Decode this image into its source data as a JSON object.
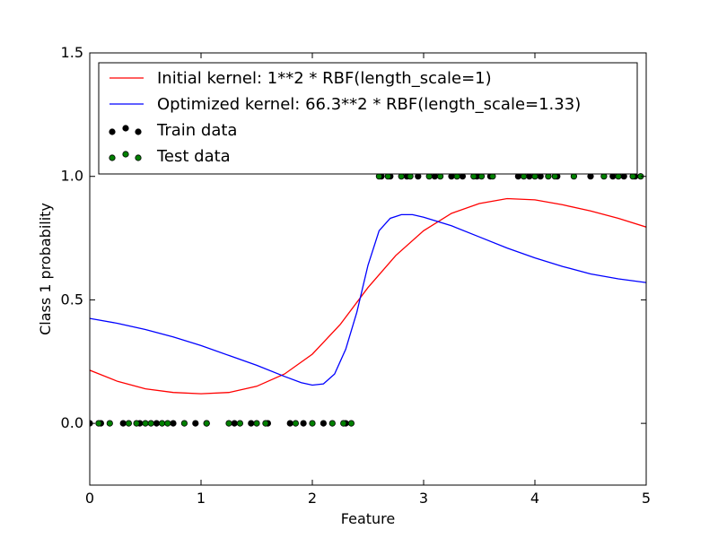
{
  "chart_data": {
    "type": "line",
    "title": "",
    "xlabel": "Feature",
    "ylabel": "Class 1 probability",
    "xlim": [
      0,
      5
    ],
    "ylim": [
      -0.25,
      1.5
    ],
    "xticks": [
      0,
      1,
      2,
      3,
      4,
      5
    ],
    "yticks": [
      0.0,
      0.5,
      1.0,
      1.5
    ],
    "xtick_labels": [
      "0",
      "1",
      "2",
      "3",
      "4",
      "5"
    ],
    "ytick_labels": [
      "0.0",
      "0.5",
      "1.0",
      "1.5"
    ],
    "grid": false,
    "legend_position": "top",
    "series": [
      {
        "name": "Initial kernel: 1**2 * RBF(length_scale=1)",
        "kind": "line",
        "color": "#ff0000",
        "x": [
          0,
          0.25,
          0.5,
          0.75,
          1.0,
          1.25,
          1.5,
          1.75,
          2.0,
          2.25,
          2.5,
          2.75,
          3.0,
          3.25,
          3.5,
          3.75,
          4.0,
          4.25,
          4.5,
          4.75,
          5.0
        ],
        "y": [
          0.215,
          0.17,
          0.14,
          0.125,
          0.12,
          0.125,
          0.15,
          0.2,
          0.28,
          0.4,
          0.55,
          0.68,
          0.78,
          0.85,
          0.89,
          0.91,
          0.905,
          0.885,
          0.86,
          0.83,
          0.795
        ]
      },
      {
        "name": "Optimized kernel: 66.3**2 * RBF(length_scale=1.33)",
        "kind": "line",
        "color": "#0000ff",
        "x": [
          0,
          0.25,
          0.5,
          0.75,
          1.0,
          1.25,
          1.5,
          1.75,
          1.9,
          2.0,
          2.1,
          2.2,
          2.3,
          2.4,
          2.5,
          2.6,
          2.7,
          2.8,
          2.9,
          3.0,
          3.25,
          3.5,
          3.75,
          4.0,
          4.25,
          4.5,
          4.75,
          5.0
        ],
        "y": [
          0.425,
          0.405,
          0.38,
          0.35,
          0.315,
          0.275,
          0.235,
          0.19,
          0.165,
          0.155,
          0.16,
          0.2,
          0.3,
          0.45,
          0.64,
          0.78,
          0.83,
          0.845,
          0.845,
          0.835,
          0.8,
          0.755,
          0.71,
          0.67,
          0.635,
          0.605,
          0.585,
          0.57
        ]
      },
      {
        "name": "Train data",
        "kind": "scatter",
        "color": "#000000",
        "x": [
          0.0,
          0.1,
          0.3,
          0.45,
          0.6,
          0.75,
          0.95,
          1.05,
          1.3,
          1.45,
          1.6,
          1.8,
          1.92,
          2.1,
          2.3,
          2.62,
          2.7,
          2.85,
          2.95,
          3.1,
          3.25,
          3.35,
          3.48,
          3.6,
          3.85,
          3.95,
          4.05,
          4.2,
          4.5,
          4.7,
          4.8,
          4.9
        ],
        "y": [
          0,
          0,
          0,
          0,
          0,
          0,
          0,
          0,
          0,
          0,
          0,
          0,
          0,
          0,
          0,
          1,
          1,
          1,
          1,
          1,
          1,
          1,
          1,
          1,
          1,
          1,
          1,
          1,
          1,
          1,
          1,
          1
        ]
      },
      {
        "name": "Test data",
        "kind": "scatter",
        "color": "#008000",
        "x": [
          0.08,
          0.18,
          0.35,
          0.42,
          0.5,
          0.55,
          0.65,
          0.7,
          0.85,
          1.05,
          1.25,
          1.35,
          1.5,
          1.58,
          1.85,
          2.0,
          2.18,
          2.28,
          2.35,
          2.6,
          2.68,
          2.8,
          2.88,
          3.05,
          3.15,
          3.3,
          3.45,
          3.52,
          3.62,
          3.9,
          4.0,
          4.12,
          4.18,
          4.35,
          4.62,
          4.75,
          4.88,
          4.95
        ],
        "y": [
          0,
          0,
          0,
          0,
          0,
          0,
          0,
          0,
          0,
          0,
          0,
          0,
          0,
          0,
          0,
          0,
          0,
          0,
          0,
          1,
          1,
          1,
          1,
          1,
          1,
          1,
          1,
          1,
          1,
          1,
          1,
          1,
          1,
          1,
          1,
          1,
          1,
          1
        ]
      }
    ]
  }
}
